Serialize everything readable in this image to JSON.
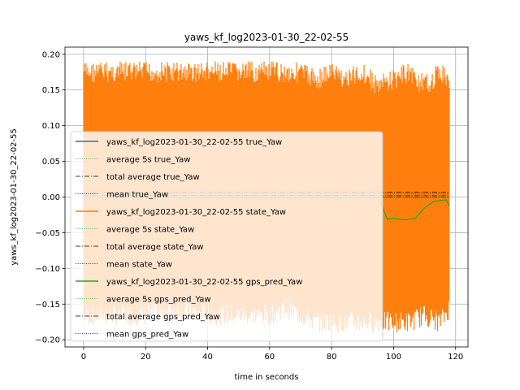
{
  "chart_data": {
    "type": "line",
    "title": "yaws_kf_log2023-01-30_22-02-55",
    "xlabel": "time in seconds",
    "ylabel": "yaws_kf_log2023-01-30_22-02-55",
    "xlim": [
      -6,
      124
    ],
    "ylim": [
      -0.21,
      0.21
    ],
    "xticks": [
      0,
      20,
      40,
      60,
      80,
      100,
      120
    ],
    "xtick_labels": [
      "0",
      "20",
      "40",
      "60",
      "80",
      "100",
      "120"
    ],
    "yticks": [
      -0.2,
      -0.15,
      -0.1,
      -0.05,
      0.0,
      0.05,
      0.1,
      0.15,
      0.2
    ],
    "ytick_labels": [
      "−0.20",
      "−0.15",
      "−0.10",
      "−0.05",
      "0.00",
      "0.05",
      "0.10",
      "0.15",
      "0.20"
    ],
    "grid": true,
    "legend_position": "center-left",
    "series": [
      {
        "name": "yaws_kf_log2023-01-30_22-02-55 true_Yaw",
        "color": "#1f77b4",
        "style": "solid",
        "x": [
          0,
          118
        ],
        "y": [
          0.0,
          0.0
        ]
      },
      {
        "name": "average 5s true_Yaw",
        "color": "#2ca02c",
        "style": "dotted",
        "x": [
          0,
          118
        ],
        "y": [
          0.0,
          0.0
        ]
      },
      {
        "name": "total average true_Yaw",
        "color": "#000000",
        "style": "dashdot",
        "x": [
          0,
          118
        ],
        "y": [
          0.0,
          0.0
        ]
      },
      {
        "name": "mean true_Yaw",
        "color": "#000000",
        "style": "dotted",
        "x": [
          0,
          118
        ],
        "y": [
          0.0,
          0.0
        ]
      },
      {
        "name": "yaws_kf_log2023-01-30_22-02-55 state_Yaw",
        "color": "#ff7f0e",
        "style": "solid",
        "envelope": {
          "x": [
            0,
            10,
            20,
            30,
            40,
            50,
            60,
            65,
            70,
            75,
            80,
            85,
            90,
            95,
            100,
            105,
            110,
            115,
            118
          ],
          "upper": [
            0.19,
            0.19,
            0.19,
            0.19,
            0.19,
            0.19,
            0.19,
            0.19,
            0.19,
            0.18,
            0.19,
            0.18,
            0.19,
            0.17,
            0.18,
            0.19,
            0.17,
            0.19,
            0.18
          ],
          "lower": [
            -0.18,
            -0.18,
            -0.18,
            -0.17,
            -0.18,
            -0.18,
            -0.18,
            -0.17,
            -0.18,
            -0.19,
            -0.19,
            -0.19,
            -0.19,
            -0.19,
            -0.19,
            -0.19,
            -0.18,
            -0.19,
            -0.17
          ]
        }
      },
      {
        "name": "average 5s state_Yaw",
        "color": "#2ca02c",
        "style": "dotted",
        "x": [
          0,
          10,
          20,
          30,
          40,
          50,
          60,
          65,
          70,
          73,
          80,
          90,
          96,
          100,
          104,
          107,
          110,
          113,
          115,
          117,
          118
        ],
        "y": [
          0.022,
          0.021,
          0.022,
          0.023,
          0.022,
          0.023,
          0.024,
          0.024,
          0.025,
          0.0,
          -0.031,
          -0.031,
          -0.031,
          -0.03,
          -0.032,
          -0.03,
          -0.015,
          -0.006,
          -0.005,
          -0.004,
          -0.01
        ]
      },
      {
        "name": "total average state_Yaw",
        "color": "#000000",
        "style": "dashdot",
        "x": [
          0,
          118
        ],
        "y": [
          0.007,
          0.007
        ]
      },
      {
        "name": "mean state_Yaw",
        "color": "#000000",
        "style": "dotted",
        "x": [
          0,
          118
        ],
        "y": [
          0.005,
          0.005
        ]
      },
      {
        "name": "yaws_kf_log2023-01-30_22-02-55 gps_pred_Yaw",
        "color": "#2ca02c",
        "style": "solid",
        "x": [
          0,
          95,
          98,
          100,
          104,
          107,
          110,
          113,
          115,
          117,
          118
        ],
        "y": [
          0.0,
          0.0,
          -0.031,
          -0.03,
          -0.032,
          -0.03,
          -0.015,
          -0.006,
          -0.005,
          -0.004,
          -0.013
        ]
      },
      {
        "name": "average 5s gps_pred_Yaw",
        "color": "#2ca02c",
        "style": "dotted",
        "x": [
          0,
          118
        ],
        "y": [
          0.0,
          0.0
        ]
      },
      {
        "name": "total average gps_pred_Yaw",
        "color": "#000000",
        "style": "dashdot",
        "x": [
          0,
          118
        ],
        "y": [
          0.002,
          0.002
        ]
      },
      {
        "name": "mean gps_pred_Yaw",
        "color": "#000000",
        "style": "dotted",
        "x": [
          0,
          118
        ],
        "y": [
          0.0,
          0.0
        ]
      }
    ]
  }
}
